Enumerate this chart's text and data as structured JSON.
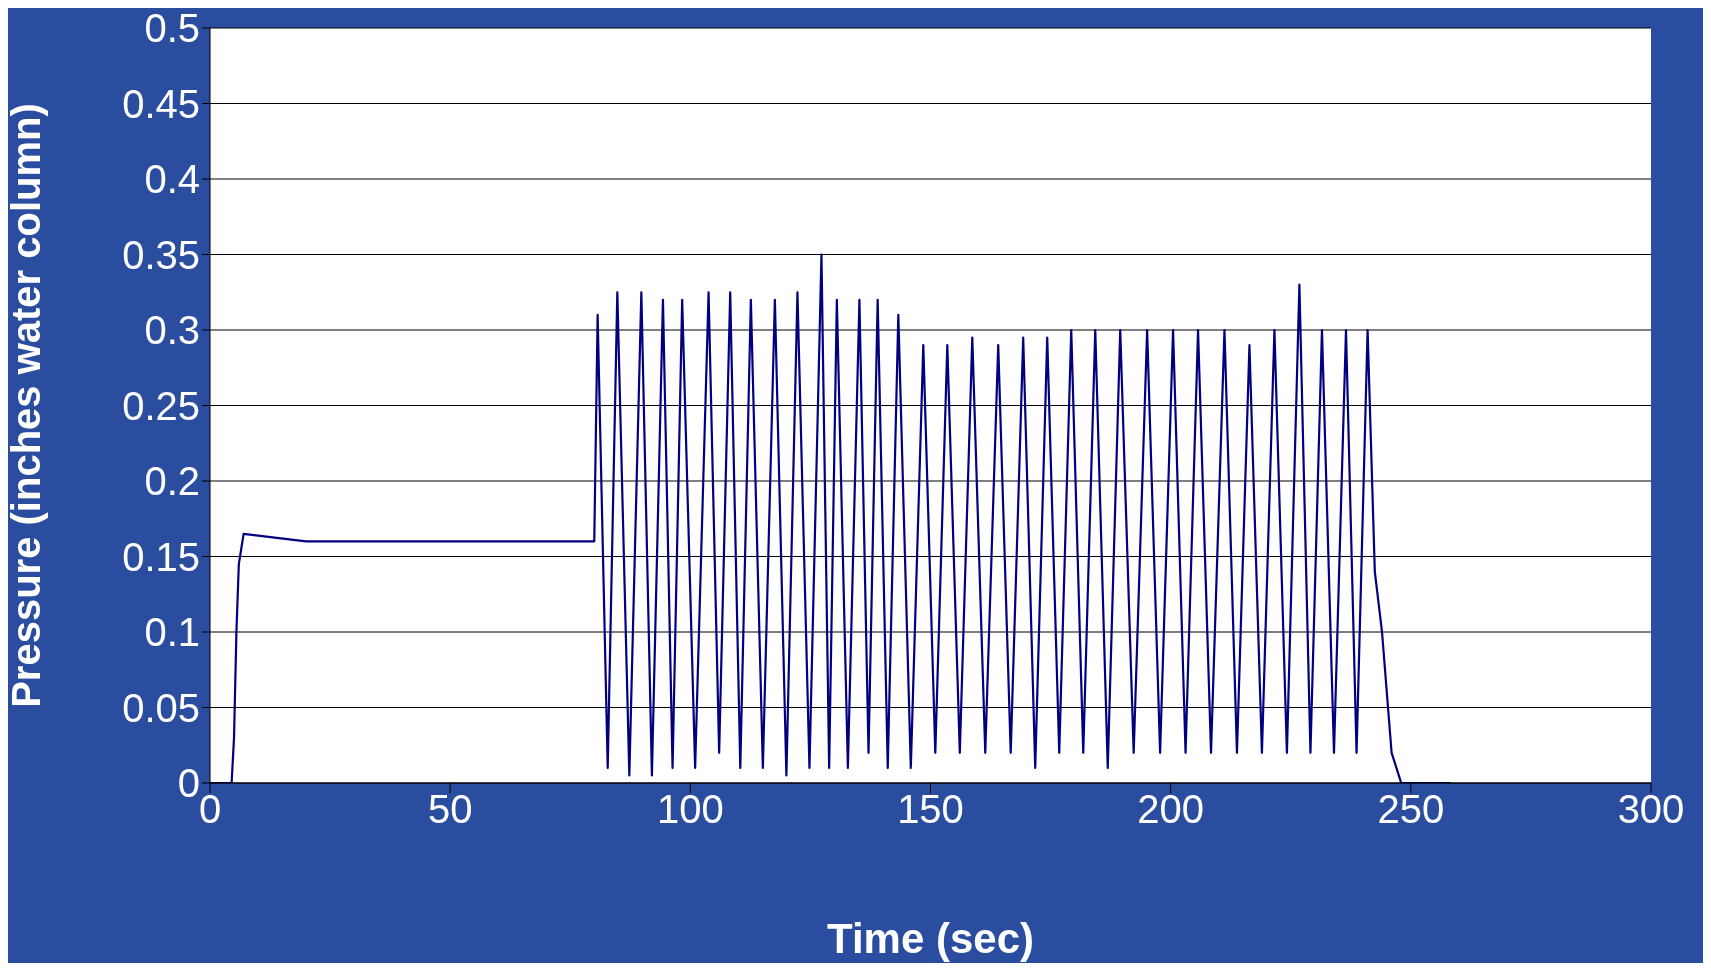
{
  "chart_data": {
    "type": "line",
    "xlabel": "Time (sec)",
    "ylabel": "Pressure (inches water column)",
    "xlim": [
      0,
      300
    ],
    "xticks": [
      0,
      50,
      100,
      150,
      200,
      250,
      300
    ],
    "ylim": [
      0,
      0.5
    ],
    "yticks": [
      0,
      0.05,
      0.1,
      0.15,
      0.2,
      0.25,
      0.3,
      0.35,
      0.4,
      0.45,
      0.5
    ],
    "grid": "y",
    "legend": false,
    "marker": "none",
    "line_style": "solid",
    "series": [
      {
        "color": "#000080",
        "x": [
          0,
          4.5,
          5,
          5.5,
          6,
          7,
          20,
          40,
          60,
          80,
          80.7,
          82.8,
          84.8,
          87.3,
          89.8,
          92.0,
          94.3,
          96.3,
          98.3,
          101.0,
          103.8,
          106.0,
          108.3,
          110.4,
          112.6,
          115.1,
          117.6,
          120.0,
          122.3,
          124.8,
          127.3,
          128.9,
          130.5,
          132.8,
          135.2,
          137.1,
          139.0,
          141.1,
          143.3,
          145.9,
          148.5,
          151.0,
          153.5,
          156.1,
          158.7,
          161.4,
          164.1,
          166.7,
          169.3,
          171.8,
          174.3,
          176.8,
          179.3,
          181.8,
          184.3,
          186.9,
          189.5,
          192.3,
          195.1,
          197.8,
          200.5,
          203.1,
          205.7,
          208.4,
          211.2,
          213.8,
          216.4,
          219.0,
          221.6,
          224.2,
          226.8,
          229.1,
          231.5,
          234.0,
          236.5,
          238.7,
          241.0,
          242.5,
          244,
          246,
          248,
          258
        ],
        "values": [
          0,
          0,
          0.03,
          0.1,
          0.145,
          0.165,
          0.16,
          0.16,
          0.16,
          0.16,
          0.31,
          0.01,
          0.325,
          0.005,
          0.325,
          0.005,
          0.32,
          0.01,
          0.32,
          0.01,
          0.325,
          0.02,
          0.325,
          0.01,
          0.32,
          0.01,
          0.32,
          0.005,
          0.325,
          0.01,
          0.35,
          0.01,
          0.32,
          0.01,
          0.32,
          0.02,
          0.32,
          0.01,
          0.31,
          0.01,
          0.29,
          0.02,
          0.29,
          0.02,
          0.295,
          0.02,
          0.29,
          0.02,
          0.295,
          0.01,
          0.295,
          0.02,
          0.3,
          0.02,
          0.3,
          0.01,
          0.3,
          0.02,
          0.3,
          0.02,
          0.3,
          0.02,
          0.3,
          0.02,
          0.3,
          0.02,
          0.29,
          0.02,
          0.3,
          0.02,
          0.33,
          0.02,
          0.3,
          0.02,
          0.3,
          0.02,
          0.3,
          0.14,
          0.1,
          0.02,
          0,
          0
        ]
      }
    ]
  }
}
